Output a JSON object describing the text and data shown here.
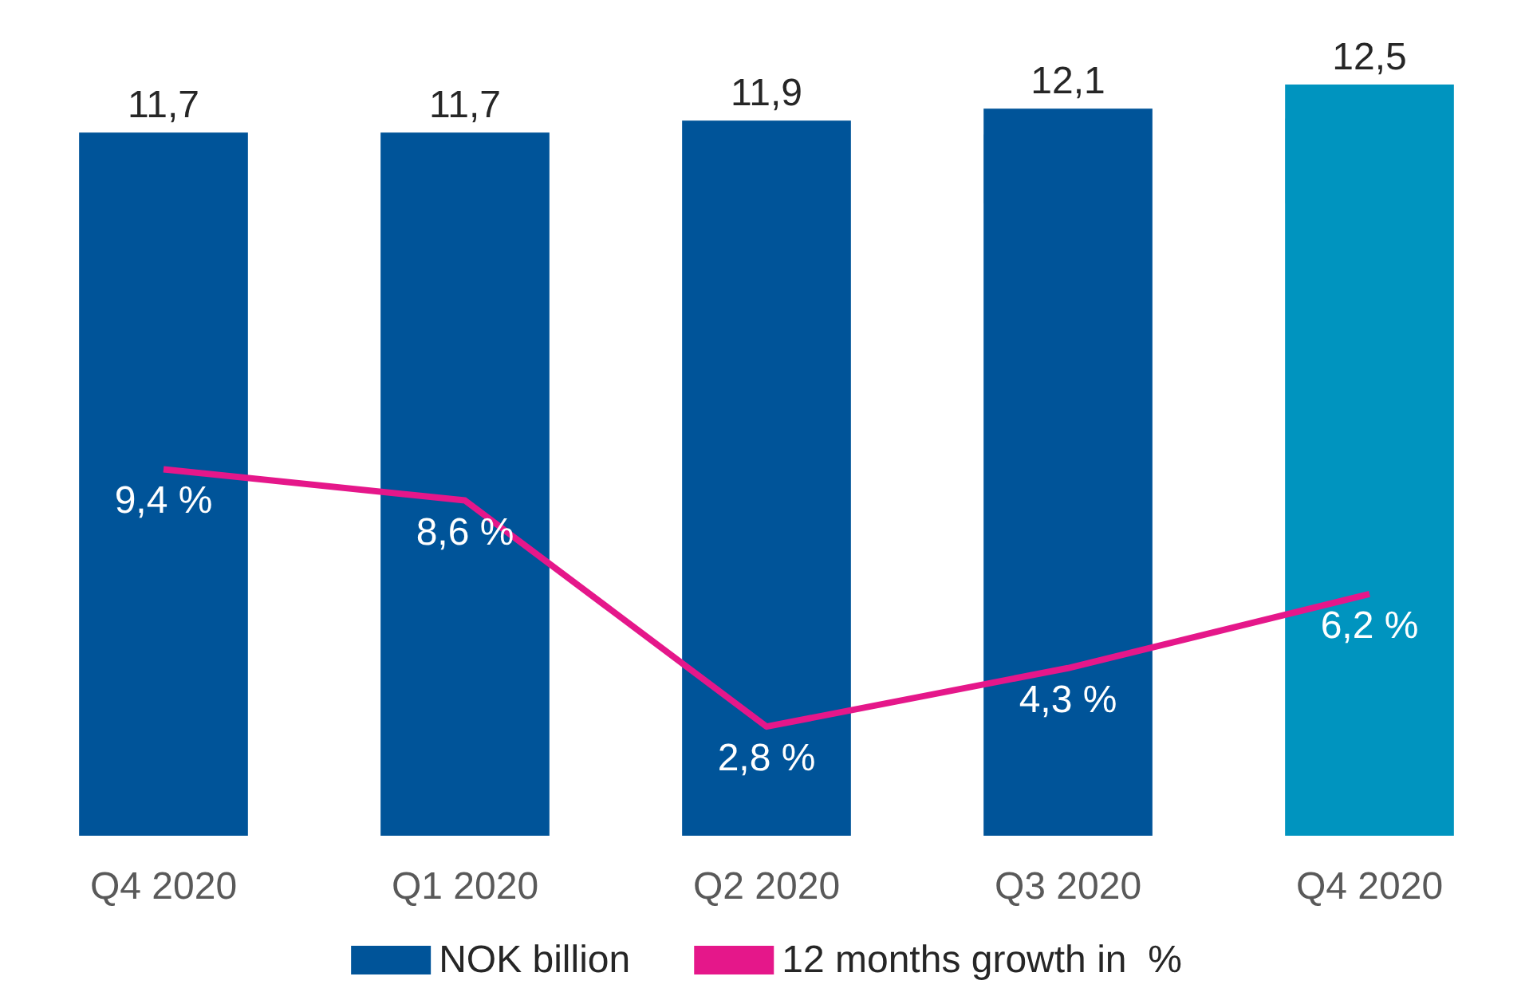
{
  "chart_data": {
    "type": "bar",
    "categories": [
      "Q4 2020",
      "Q1 2020",
      "Q2 2020",
      "Q3 2020",
      "Q4 2020"
    ],
    "series": [
      {
        "name": "NOK billion",
        "colors": [
          "#005499",
          "#005499",
          "#005499",
          "#005499",
          "#0094bf"
        ],
        "color": "#005499",
        "values": [
          11.7,
          11.7,
          11.9,
          12.1,
          12.5
        ],
        "value_labels": [
          "11,7",
          "11,7",
          "11,9",
          "12,1",
          "12,5"
        ]
      },
      {
        "name": "12 months growth in  %",
        "type": "line",
        "axis": "y2",
        "color": "#e5178a",
        "values": [
          9.4,
          8.6,
          2.8,
          4.3,
          6.2
        ],
        "value_labels": [
          "9,4 %",
          "8,6 %",
          "2,8 %",
          "4,3 %",
          "6,2 %"
        ]
      }
    ],
    "legend": "bottom",
    "grid": false,
    "marker": "none",
    "tick_labels": "x"
  }
}
